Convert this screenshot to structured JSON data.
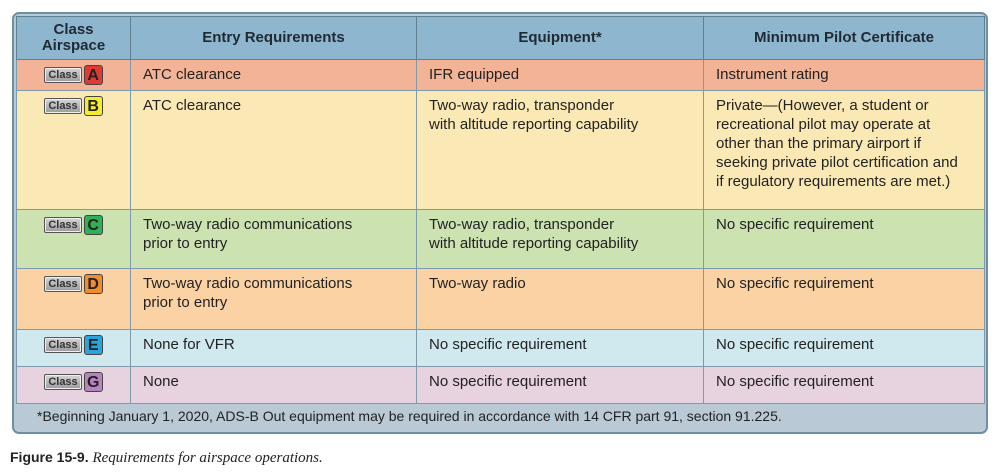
{
  "table": {
    "headers": {
      "class": "Class Airspace",
      "entry": "Entry Requirements",
      "equipment": "Equipment*",
      "certificate": "Minimum Pilot Certificate"
    },
    "class_word": "Class",
    "rows": [
      {
        "letter": "A",
        "entry": "ATC clearance",
        "equipment": "IFR equipped",
        "certificate": "Instrument rating"
      },
      {
        "letter": "B",
        "entry": "ATC clearance",
        "equipment": "Two-way radio, transponder\nwith altitude reporting capability",
        "certificate": "Private—(However, a student or\nrecreational pilot may operate at\nother than the primary airport if\nseeking private pilot certification and\nif regulatory requirements are met.)"
      },
      {
        "letter": "C",
        "entry": "Two-way radio communications\nprior to entry",
        "equipment": "Two-way radio, transponder\nwith altitude reporting capability",
        "certificate": "No specific requirement"
      },
      {
        "letter": "D",
        "entry": "Two-way radio communications\nprior to entry",
        "equipment": "Two-way radio",
        "certificate": "No specific requirement"
      },
      {
        "letter": "E",
        "entry": "None for VFR",
        "equipment": "No specific requirement",
        "certificate": "No specific requirement"
      },
      {
        "letter": "G",
        "entry": "None",
        "equipment": "No specific requirement",
        "certificate": "No specific requirement"
      }
    ],
    "footnote": "*Beginning January 1, 2020, ADS-B Out equipment may be required in accordance with 14 CFR part 91, section 91.225."
  },
  "caption": {
    "figure": "Figure 15-9.",
    "title": "Requirements for airspace operations."
  },
  "colors": {
    "row_A": "#f3b396",
    "row_B": "#fbe9b5",
    "row_C": "#cce2b1",
    "row_D": "#fad2a4",
    "row_E": "#cfe9ee",
    "row_G": "#e7d2e0",
    "badge_A": "#e03a35",
    "badge_B": "#f6ec2c",
    "badge_C": "#2fb054",
    "badge_D": "#f28c2a",
    "badge_E": "#29a4de",
    "badge_G": "#b784bf",
    "header": "#8fb6cf",
    "footer": "#b9c9d6"
  }
}
